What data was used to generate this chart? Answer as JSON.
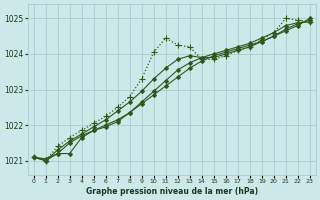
{
  "title": "Graphe pression niveau de la mer (hPa)",
  "bg_color": "#cce8e8",
  "grid_color": "#aacccc",
  "line_color": "#2d5a1b",
  "text_color": "#1a3a1a",
  "xlim": [
    -0.5,
    23.5
  ],
  "ylim": [
    1020.6,
    1025.4
  ],
  "yticks": [
    1021,
    1022,
    1023,
    1024,
    1025
  ],
  "xticks": [
    0,
    1,
    2,
    3,
    4,
    5,
    6,
    7,
    8,
    9,
    10,
    11,
    12,
    13,
    14,
    15,
    16,
    17,
    18,
    19,
    20,
    21,
    22,
    23
  ],
  "series": [
    {
      "x": [
        0,
        1,
        2,
        3,
        4,
        5,
        6,
        7,
        8,
        9,
        10,
        11,
        12,
        13,
        14,
        15,
        16,
        17,
        18,
        19,
        20,
        21,
        22,
        23
      ],
      "y": [
        1021.1,
        1021.0,
        1021.2,
        1021.5,
        1021.7,
        1021.85,
        1022.0,
        1022.15,
        1022.35,
        1022.6,
        1022.85,
        1023.1,
        1023.35,
        1023.6,
        1023.8,
        1023.95,
        1024.05,
        1024.15,
        1024.25,
        1024.35,
        1024.5,
        1024.65,
        1024.8,
        1025.0
      ],
      "style": "-",
      "marker": "D",
      "markersize": 2.0,
      "linewidth": 0.8
    },
    {
      "x": [
        0,
        1,
        2,
        3,
        4,
        5,
        6,
        7,
        8,
        9,
        10,
        11,
        12,
        13,
        14,
        15,
        16,
        17,
        18,
        19,
        20,
        21,
        22,
        23
      ],
      "y": [
        1021.1,
        1021.0,
        1021.3,
        1021.55,
        1021.75,
        1021.95,
        1022.15,
        1022.4,
        1022.65,
        1022.95,
        1023.3,
        1023.6,
        1023.85,
        1023.95,
        1023.9,
        1023.9,
        1024.0,
        1024.1,
        1024.2,
        1024.35,
        1024.5,
        1024.7,
        1024.85,
        1024.95
      ],
      "style": "-",
      "marker": "D",
      "markersize": 2.0,
      "linewidth": 0.8
    },
    {
      "x": [
        0,
        1,
        2,
        3,
        4,
        5,
        6,
        7,
        8,
        9,
        10,
        11,
        12,
        13,
        14,
        15,
        16,
        17,
        18,
        19,
        20,
        21,
        22,
        23
      ],
      "y": [
        1021.1,
        1021.0,
        1021.4,
        1021.65,
        1021.85,
        1022.05,
        1022.25,
        1022.5,
        1022.8,
        1023.3,
        1024.05,
        1024.45,
        1024.25,
        1024.2,
        1023.85,
        1023.85,
        1023.95,
        1024.1,
        1024.2,
        1024.4,
        1024.6,
        1025.0,
        1024.95,
        1024.9
      ],
      "style": ":",
      "marker": "+",
      "markersize": 4.5,
      "linewidth": 0.9
    },
    {
      "x": [
        0,
        1,
        2,
        3,
        4,
        5,
        6,
        7,
        8,
        9,
        10,
        11,
        12,
        13,
        14,
        15,
        16,
        17,
        18,
        19,
        20,
        21,
        22,
        23
      ],
      "y": [
        1021.1,
        1021.05,
        1021.2,
        1021.2,
        1021.65,
        1021.85,
        1021.95,
        1022.1,
        1022.35,
        1022.65,
        1022.95,
        1023.25,
        1023.55,
        1023.75,
        1023.9,
        1024.0,
        1024.1,
        1024.2,
        1024.3,
        1024.45,
        1024.6,
        1024.8,
        1024.88,
        1024.9
      ],
      "style": "-",
      "marker": "D",
      "markersize": 2.0,
      "linewidth": 0.8
    }
  ]
}
